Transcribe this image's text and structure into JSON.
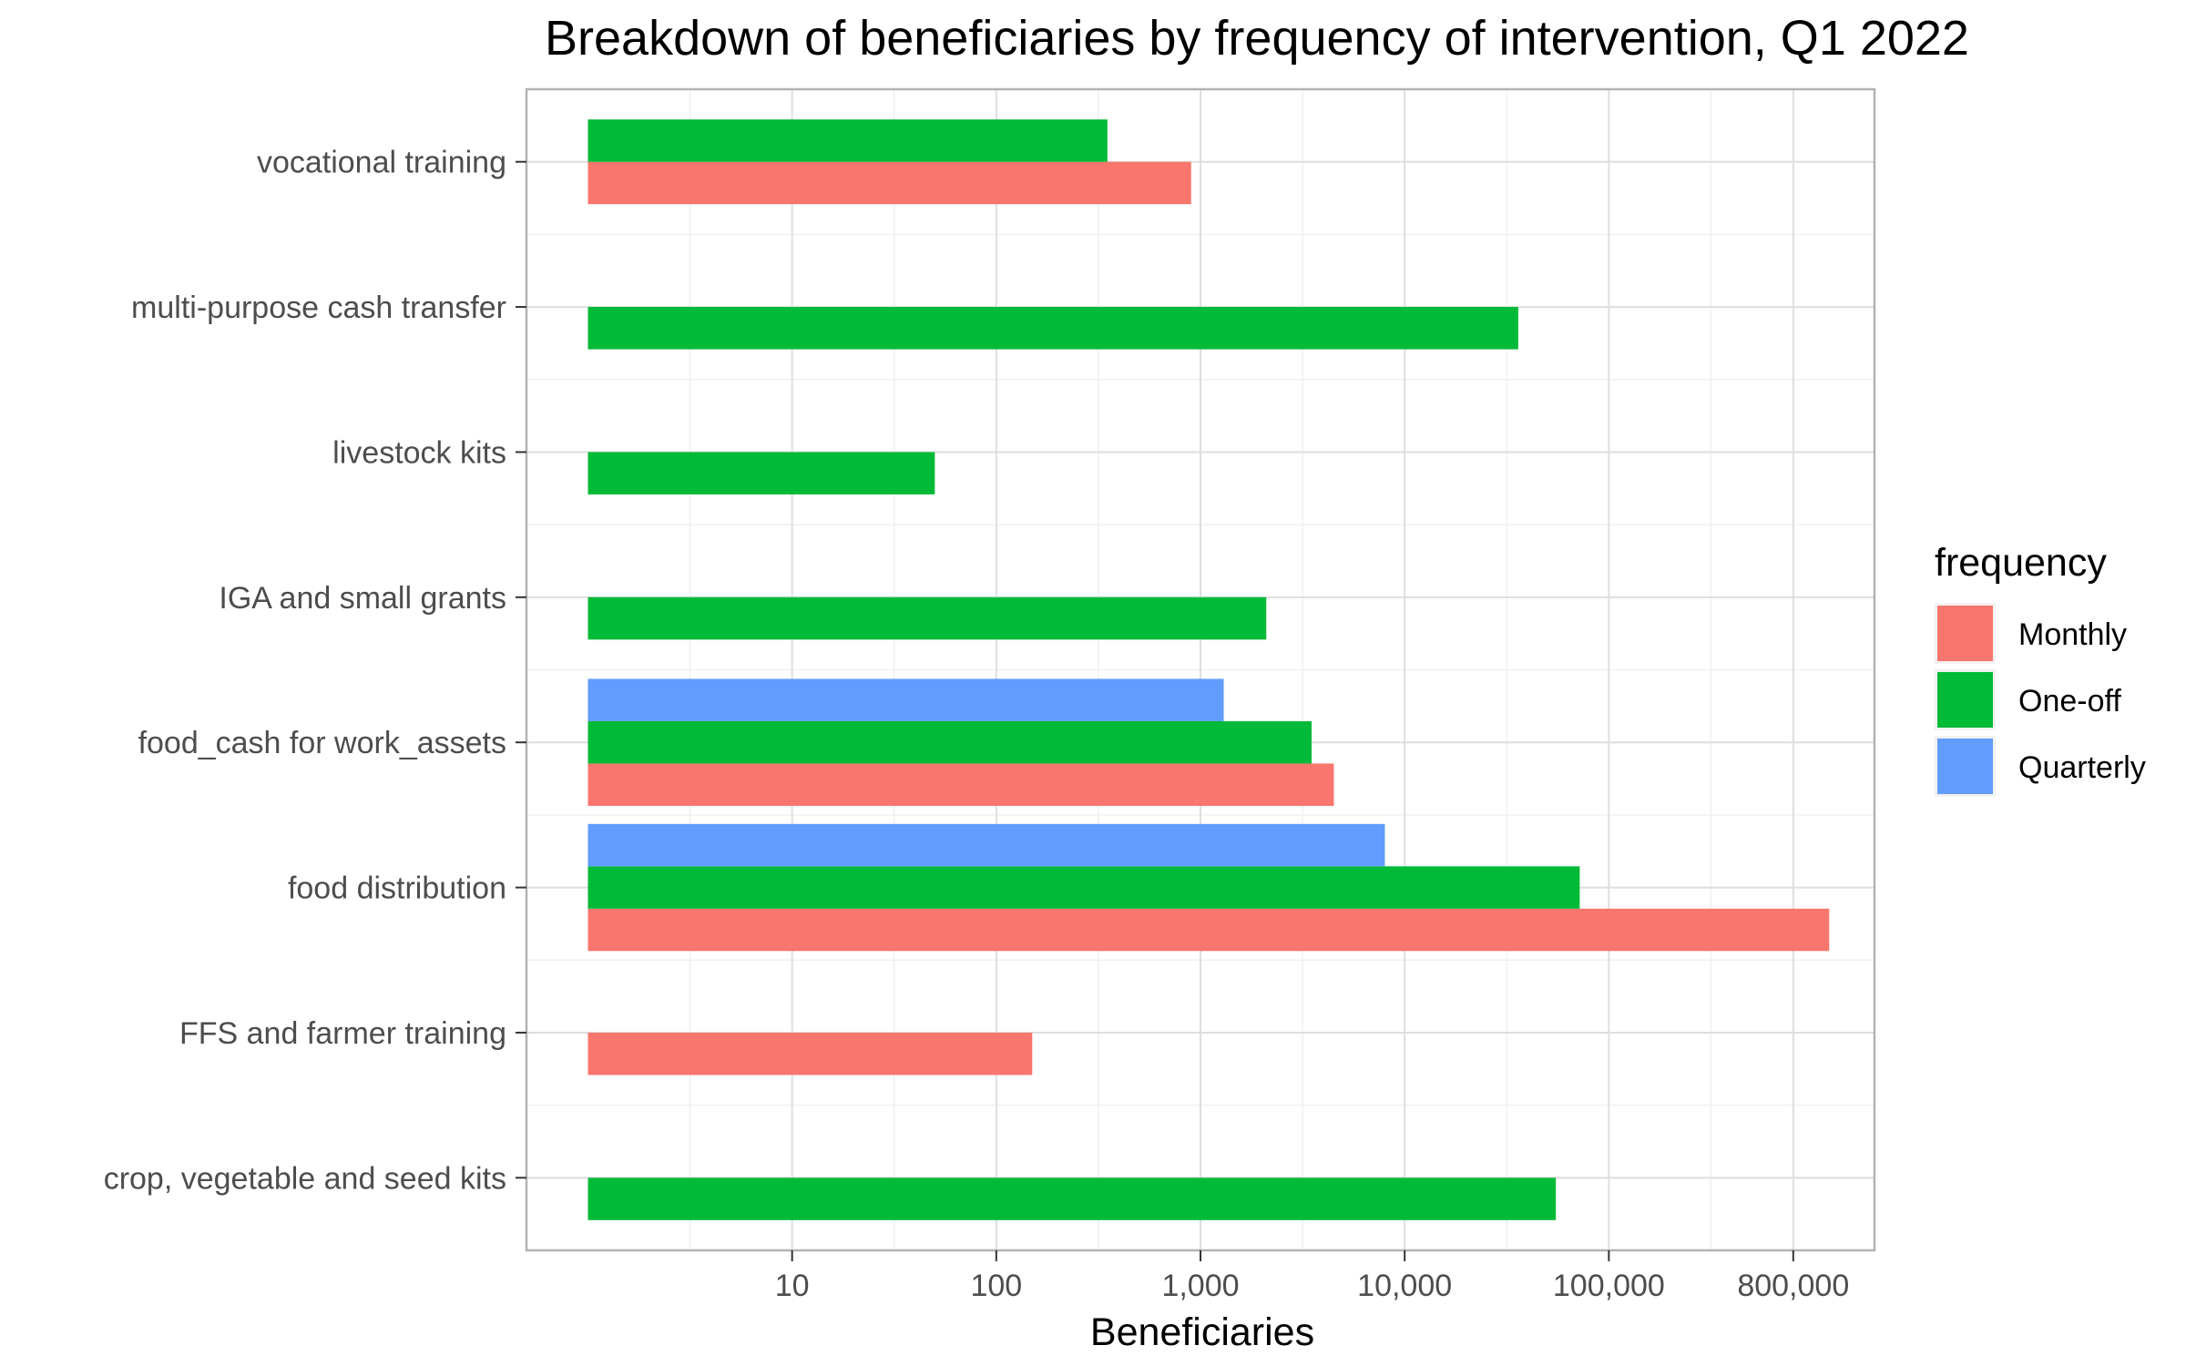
{
  "chart_data": {
    "type": "bar",
    "orientation": "horizontal",
    "title": "Breakdown of beneficiaries by frequency of intervention, Q1 2022",
    "xlabel": "Beneficiaries",
    "ylabel": "",
    "x_scale": "log10",
    "xlim": [
      0.5,
      2000000
    ],
    "x_ticks": [
      10,
      100,
      1000,
      10000,
      100000,
      800000
    ],
    "x_tick_labels": [
      "10",
      "100",
      "1,000",
      "10,000",
      "100,000",
      "800,000"
    ],
    "grid": true,
    "legend_position": "right",
    "legend_title": "frequency",
    "categories": [
      "crop, vegetable and seed kits",
      "FFS and farmer training",
      "food distribution",
      "food_cash for work_assets",
      "IGA and small grants",
      "livestock kits",
      "multi-purpose cash transfer",
      "vocational training"
    ],
    "series": [
      {
        "name": "Monthly",
        "color": "#F8766D",
        "values": [
          null,
          150,
          1200000,
          4500,
          null,
          null,
          null,
          900
        ]
      },
      {
        "name": "One-off",
        "color": "#00BA38",
        "values": [
          55000,
          null,
          72000,
          3500,
          2100,
          50,
          36000,
          350
        ]
      },
      {
        "name": "Quarterly",
        "color": "#619CFF",
        "values": [
          null,
          null,
          8000,
          1300,
          null,
          null,
          null,
          null
        ]
      }
    ]
  }
}
